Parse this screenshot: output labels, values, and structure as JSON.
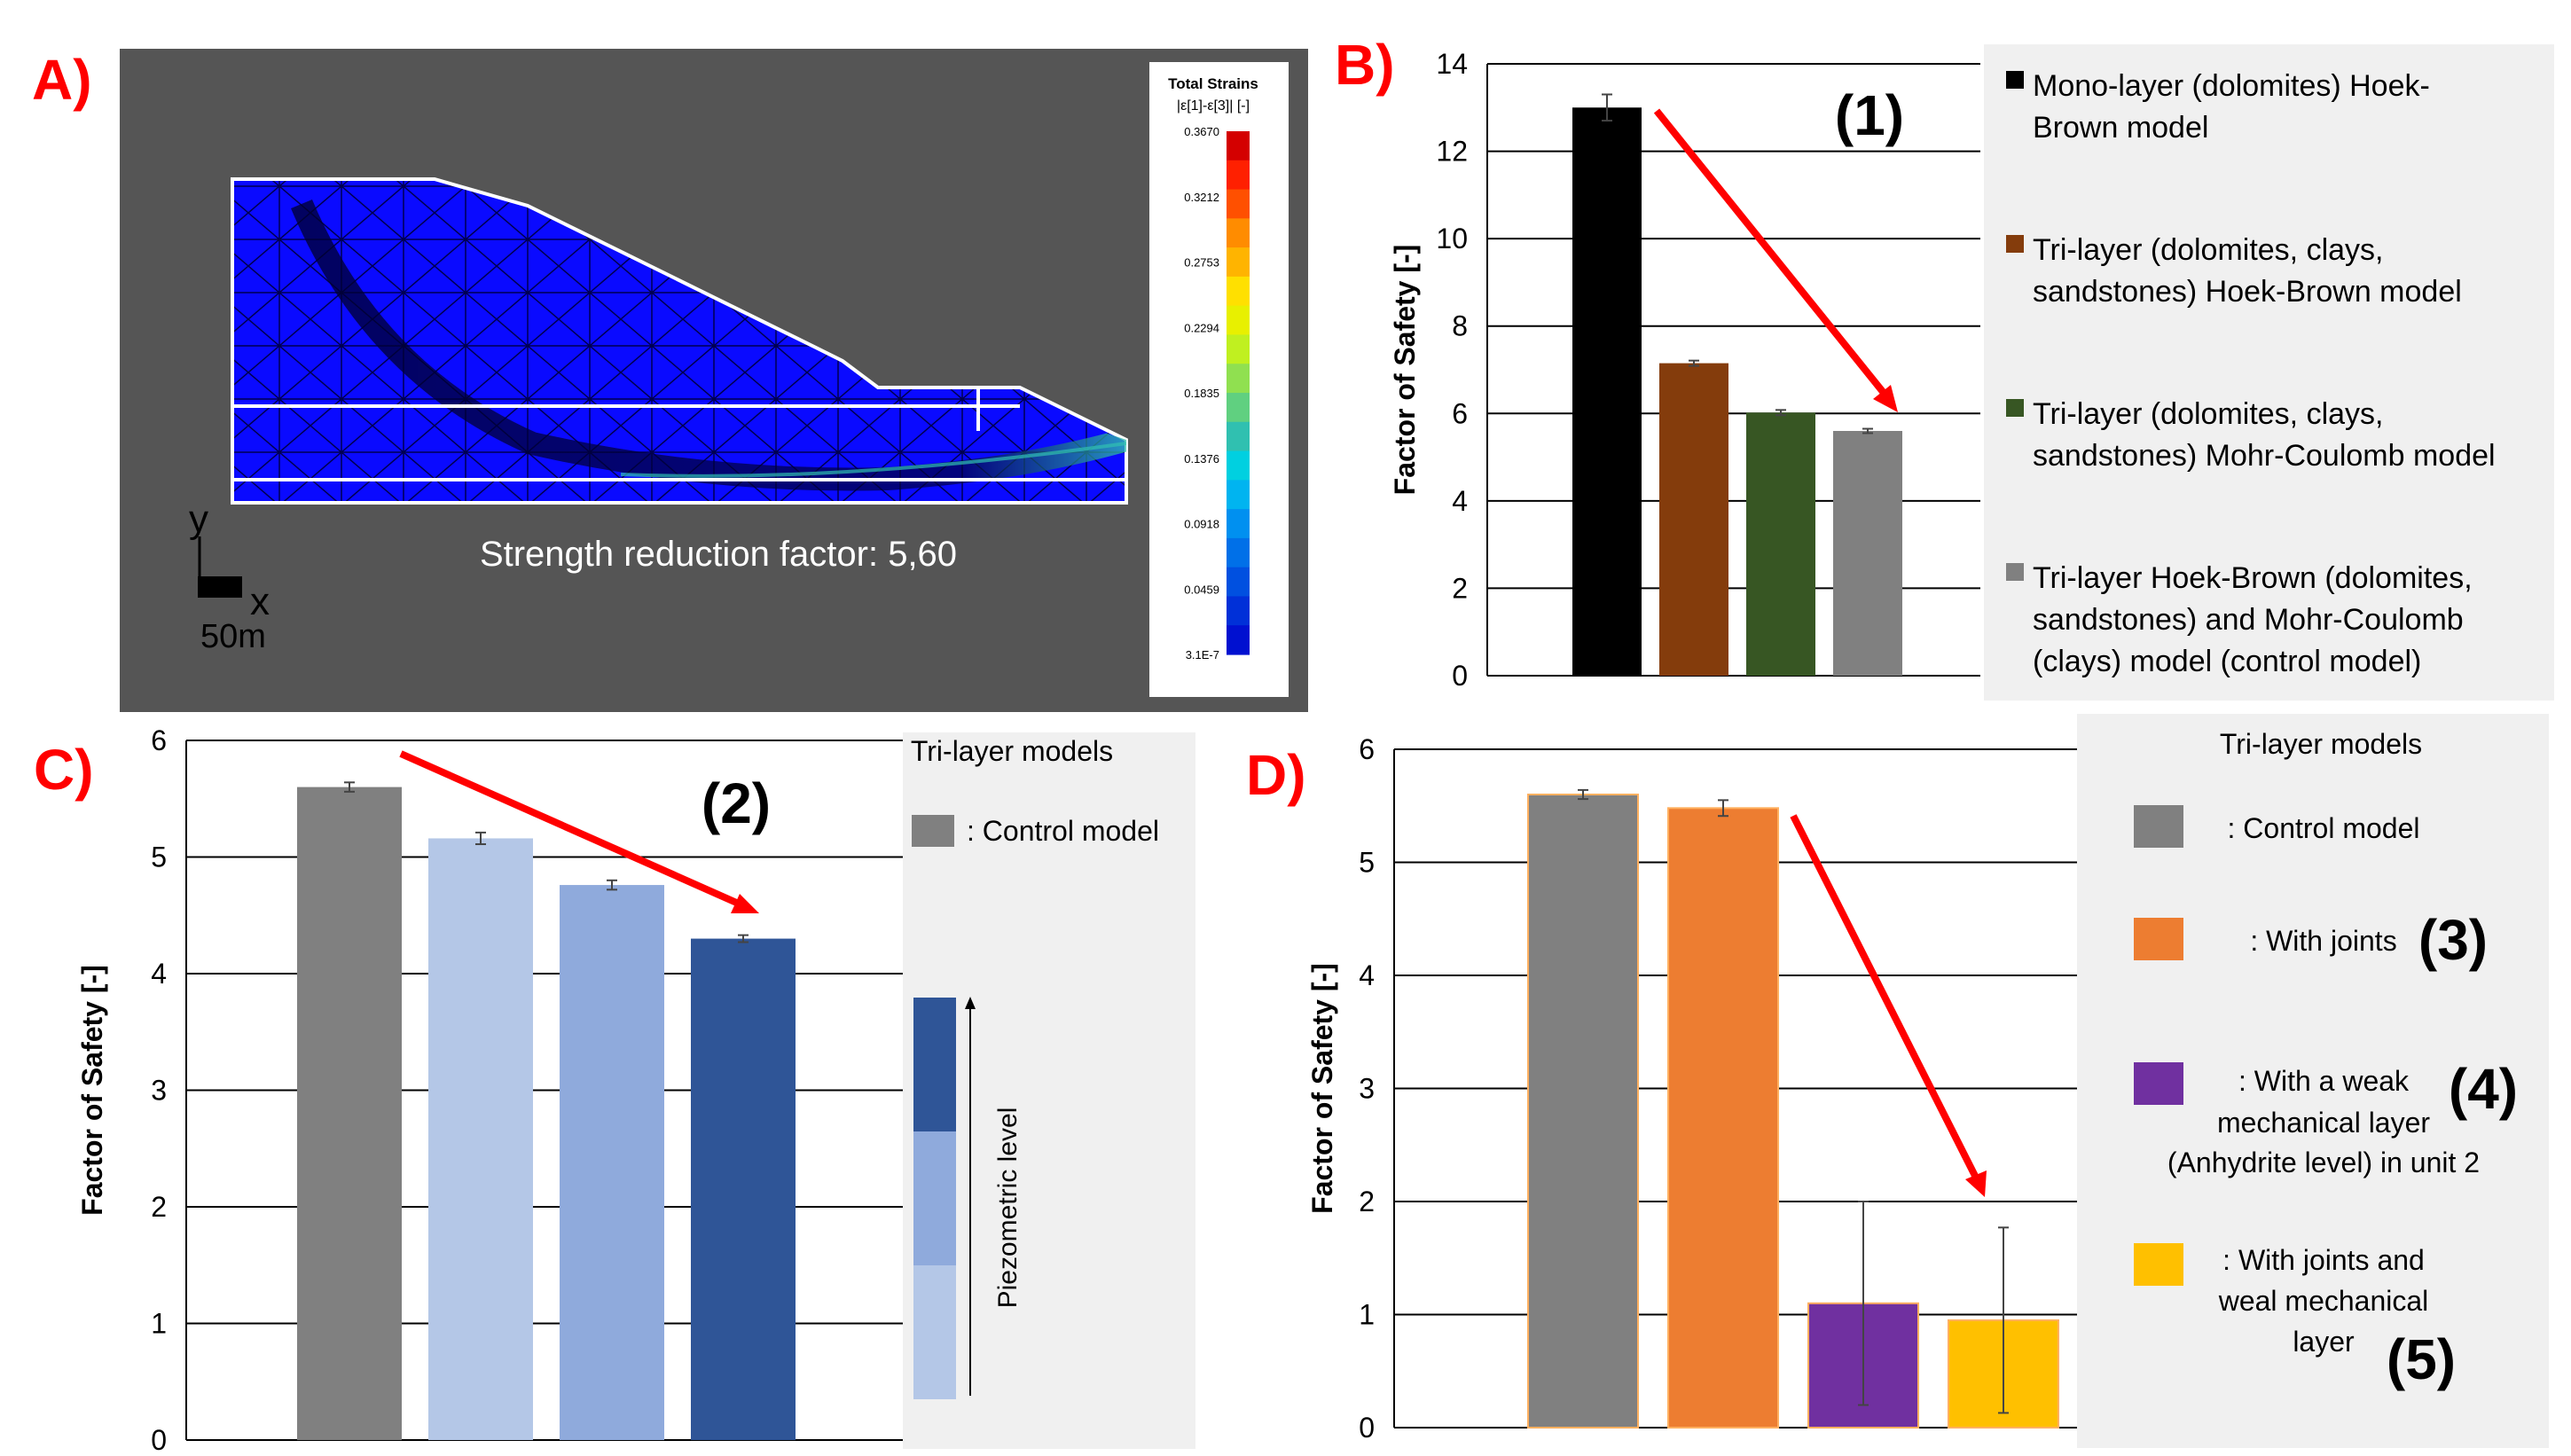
{
  "panels": {
    "A": {
      "letter": "A)",
      "legend_title": [
        "Total Strains",
        "|ε[1]-ε[3]| [-]"
      ],
      "legend_ticks": [
        "0.3670",
        "0.3212",
        "0.2753",
        "0.2294",
        "0.1835",
        "0.1376",
        "0.0918",
        "0.0459",
        "3.1E-7"
      ],
      "legend_colors": [
        "#d40000",
        "#ff2000",
        "#ff5000",
        "#ff8c00",
        "#ffb400",
        "#ffe000",
        "#e8f000",
        "#c0f020",
        "#90e050",
        "#60d080",
        "#30c0b0",
        "#00d0e0",
        "#00b4f0",
        "#0090f0",
        "#0070e8",
        "#0050e0",
        "#0030d8",
        "#0010d0"
      ],
      "annotation": "Strength reduction factor: 5,60",
      "axis_y": "y",
      "axis_x": "x",
      "scale_label": "50m",
      "colors": {
        "background": "#555555",
        "mesh": "#0a0aff",
        "outline": "#ffffff"
      }
    },
    "B": {
      "letter": "B)",
      "marker": "(1)"
    },
    "C": {
      "letter": "C)",
      "marker": "(2)"
    },
    "D": {
      "letter": "D)",
      "markers": [
        "(3)",
        "(4)",
        "(5)"
      ]
    }
  },
  "chart_data": [
    {
      "panel": "B",
      "type": "bar",
      "ylabel": "Factor of Safety [-]",
      "ylim": [
        0,
        14
      ],
      "yticks": [
        0,
        2,
        4,
        6,
        8,
        10,
        12,
        14
      ],
      "grid": true,
      "legend_position": "right",
      "series": [
        {
          "name": "Mono-layer (dolomites) Hoek-Brown model",
          "value": 13.0,
          "error": 0.3,
          "color": "#000000"
        },
        {
          "name": "Tri-layer (dolomites, clays, sandstones) Hoek-Brown model",
          "value": 7.15,
          "error": 0.06,
          "color": "#843c0c"
        },
        {
          "name": "Tri-layer (dolomites, clays, sandstones) Mohr-Coulomb model",
          "value": 6.02,
          "error": 0.06,
          "color": "#375623"
        },
        {
          "name": "Tri-layer Hoek-Brown (dolomites, sandstones) and Mohr-Coulomb (clays) model (control model)",
          "value": 5.6,
          "error": 0.05,
          "color": "#808080"
        }
      ],
      "legend_lines": [
        [
          "Mono-layer (dolomites) Hoek-",
          "Brown model"
        ],
        [
          "Tri-layer (dolomites, clays,",
          "sandstones) Hoek-Brown model"
        ],
        [
          "Tri-layer (dolomites, clays,",
          "sandstones) Mohr-Coulomb model"
        ],
        [
          "Tri-layer Hoek-Brown (dolomites,",
          "sandstones) and Mohr-Coulomb",
          "(clays) model (control model)"
        ]
      ]
    },
    {
      "panel": "C",
      "type": "bar",
      "ylabel": "Factor of Safety [-]",
      "ylim": [
        0,
        6
      ],
      "yticks": [
        0,
        1,
        2,
        3,
        4,
        5,
        6
      ],
      "grid": true,
      "legend_position": "right",
      "legend_title": "Tri-layer models",
      "legend_entry": ": Control model",
      "legend_axis_label": "Piezometric level",
      "series": [
        {
          "value": 5.6,
          "error": 0.04,
          "color": "#808080"
        },
        {
          "value": 5.16,
          "error": 0.05,
          "color": "#b4c7e7"
        },
        {
          "value": 4.76,
          "error": 0.04,
          "color": "#8faadc"
        },
        {
          "value": 4.3,
          "error": 0.03,
          "color": "#2f5597"
        }
      ]
    },
    {
      "panel": "D",
      "type": "bar",
      "ylabel": "Factor of Safety [-]",
      "ylim": [
        0,
        6
      ],
      "yticks": [
        0,
        1,
        2,
        3,
        4,
        5,
        6
      ],
      "grid": true,
      "legend_position": "right",
      "legend_title": "Tri-layer models",
      "series": [
        {
          "name": ": Control model",
          "value": 5.6,
          "error": 0.04,
          "color": "#808080"
        },
        {
          "name": ": With  joints",
          "value": 5.48,
          "error": 0.07,
          "color": "#ed7d31"
        },
        {
          "name": ": With a weak mechanical layer (Anhydrite level) in unit 2",
          "value": 1.1,
          "error": 0.9,
          "color": "#7030a0"
        },
        {
          "name": ": With joints and weal mechanical layer",
          "value": 0.95,
          "error": 0.82,
          "color": "#ffc000"
        }
      ],
      "legend_lines": [
        [
          ": Control model"
        ],
        [
          ": With  joints"
        ],
        [
          ": With a weak",
          "mechanical layer",
          "(Anhydrite level) in unit 2"
        ],
        [
          ": With joints and",
          "weal mechanical",
          "layer"
        ]
      ]
    }
  ]
}
